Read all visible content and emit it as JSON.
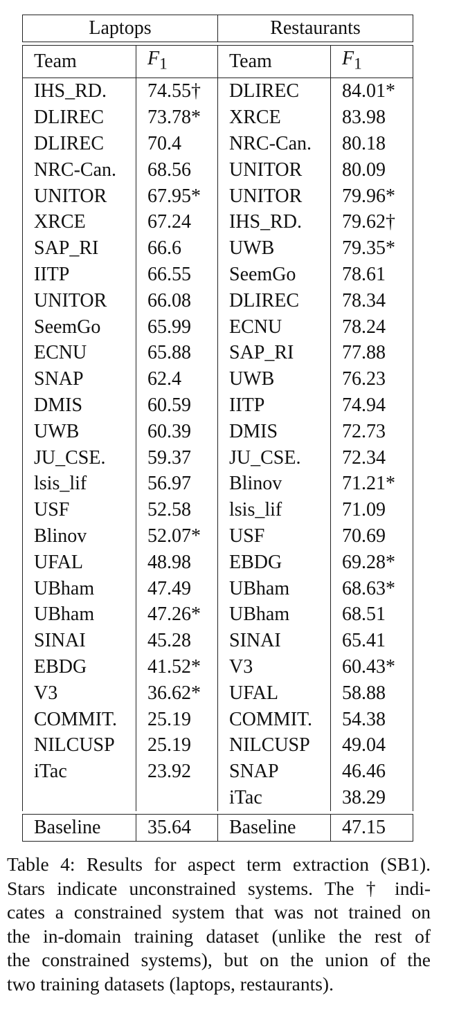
{
  "table": {
    "groups": [
      "Laptops",
      "Restaurants"
    ],
    "team_header": "Team",
    "f1_header": "F",
    "f1_sub": "1",
    "rows": [
      [
        "IHS_RD.",
        "74.55†",
        "DLIREC",
        "84.01*"
      ],
      [
        "DLIREC",
        "73.78*",
        "XRCE",
        "83.98"
      ],
      [
        "DLIREC",
        "70.4",
        "NRC-Can.",
        "80.18"
      ],
      [
        "NRC-Can.",
        "68.56",
        "UNITOR",
        "80.09"
      ],
      [
        "UNITOR",
        "67.95*",
        "UNITOR",
        "79.96*"
      ],
      [
        "XRCE",
        "67.24",
        "IHS_RD.",
        "79.62†"
      ],
      [
        "SAP_RI",
        "66.6",
        "UWB",
        "79.35*"
      ],
      [
        "IITP",
        "66.55",
        "SeemGo",
        "78.61"
      ],
      [
        "UNITOR",
        "66.08",
        "DLIREC",
        "78.34"
      ],
      [
        "SeemGo",
        "65.99",
        "ECNU",
        "78.24"
      ],
      [
        "ECNU",
        "65.88",
        "SAP_RI",
        "77.88"
      ],
      [
        "SNAP",
        "62.4",
        "UWB",
        "76.23"
      ],
      [
        "DMIS",
        "60.59",
        "IITP",
        "74.94"
      ],
      [
        "UWB",
        "60.39",
        "DMIS",
        "72.73"
      ],
      [
        "JU_CSE.",
        "59.37",
        "JU_CSE.",
        "72.34"
      ],
      [
        "lsis_lif",
        "56.97",
        "Blinov",
        "71.21*"
      ],
      [
        "USF",
        "52.58",
        "lsis_lif",
        "71.09"
      ],
      [
        "Blinov",
        "52.07*",
        "USF",
        "70.69"
      ],
      [
        "UFAL",
        "48.98",
        "EBDG",
        "69.28*"
      ],
      [
        "UBham",
        "47.49",
        "UBham",
        "68.63*"
      ],
      [
        "UBham",
        "47.26*",
        "UBham",
        "68.51"
      ],
      [
        "SINAI",
        "45.28",
        "SINAI",
        "65.41"
      ],
      [
        "EBDG",
        "41.52*",
        "V3",
        "60.43*"
      ],
      [
        "V3",
        "36.62*",
        "UFAL",
        "58.88"
      ],
      [
        "COMMIT.",
        "25.19",
        "COMMIT.",
        "54.38"
      ],
      [
        "NILCUSP",
        "25.19",
        "NILCUSP",
        "49.04"
      ],
      [
        "iTac",
        "23.92",
        "SNAP",
        "46.46"
      ],
      [
        "",
        "",
        "iTac",
        "38.29"
      ]
    ],
    "baseline": [
      "Baseline",
      "35.64",
      "Baseline",
      "47.15"
    ]
  },
  "caption": {
    "lines": [
      "Table 4: Results for aspect term extraction (SB1).",
      "Stars indicate unconstrained systems. The † indi-",
      "cates a constrained system that was not trained on",
      "the in-domain training dataset (unlike the rest of",
      "the constrained systems), but on the union of the",
      "two training datasets (laptops, restaurants)."
    ]
  }
}
